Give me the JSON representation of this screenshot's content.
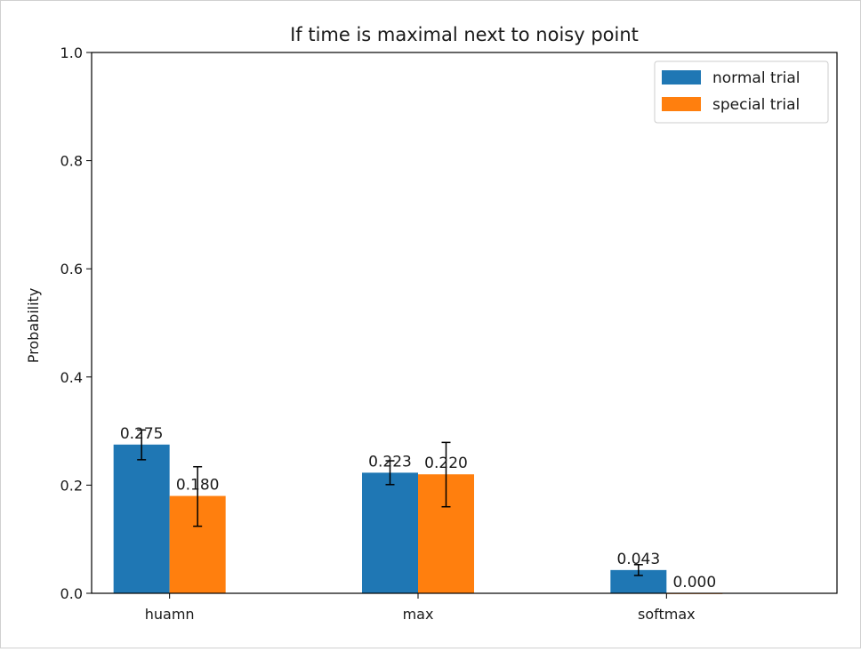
{
  "chart_data": {
    "type": "bar",
    "title": "If time is maximal next to noisy point",
    "xlabel": "",
    "ylabel": "Probability",
    "categories": [
      "huamn",
      "max",
      "softmax"
    ],
    "ylim": [
      0,
      1.0
    ],
    "yticks": [
      0.0,
      0.2,
      0.4,
      0.6,
      0.8,
      1.0
    ],
    "ytick_labels": [
      "0.0",
      "0.2",
      "0.4",
      "0.6",
      "0.8",
      "1.0"
    ],
    "grid": false,
    "legend_position": "top-right",
    "series": [
      {
        "name": "normal trial",
        "color": "#1f77b4",
        "values": [
          0.275,
          0.223,
          0.043
        ],
        "labels": [
          "0.275",
          "0.223",
          "0.043"
        ],
        "err_low": [
          0.247,
          0.201,
          0.033
        ],
        "err_high": [
          0.302,
          0.245,
          0.053
        ]
      },
      {
        "name": "special trial",
        "color": "#ff7f0e",
        "values": [
          0.18,
          0.22,
          0.0
        ],
        "labels": [
          "0.180",
          "0.220",
          "0.000"
        ],
        "err_low": [
          0.124,
          0.16,
          0.0
        ],
        "err_high": [
          0.234,
          0.279,
          0.0
        ]
      }
    ]
  }
}
